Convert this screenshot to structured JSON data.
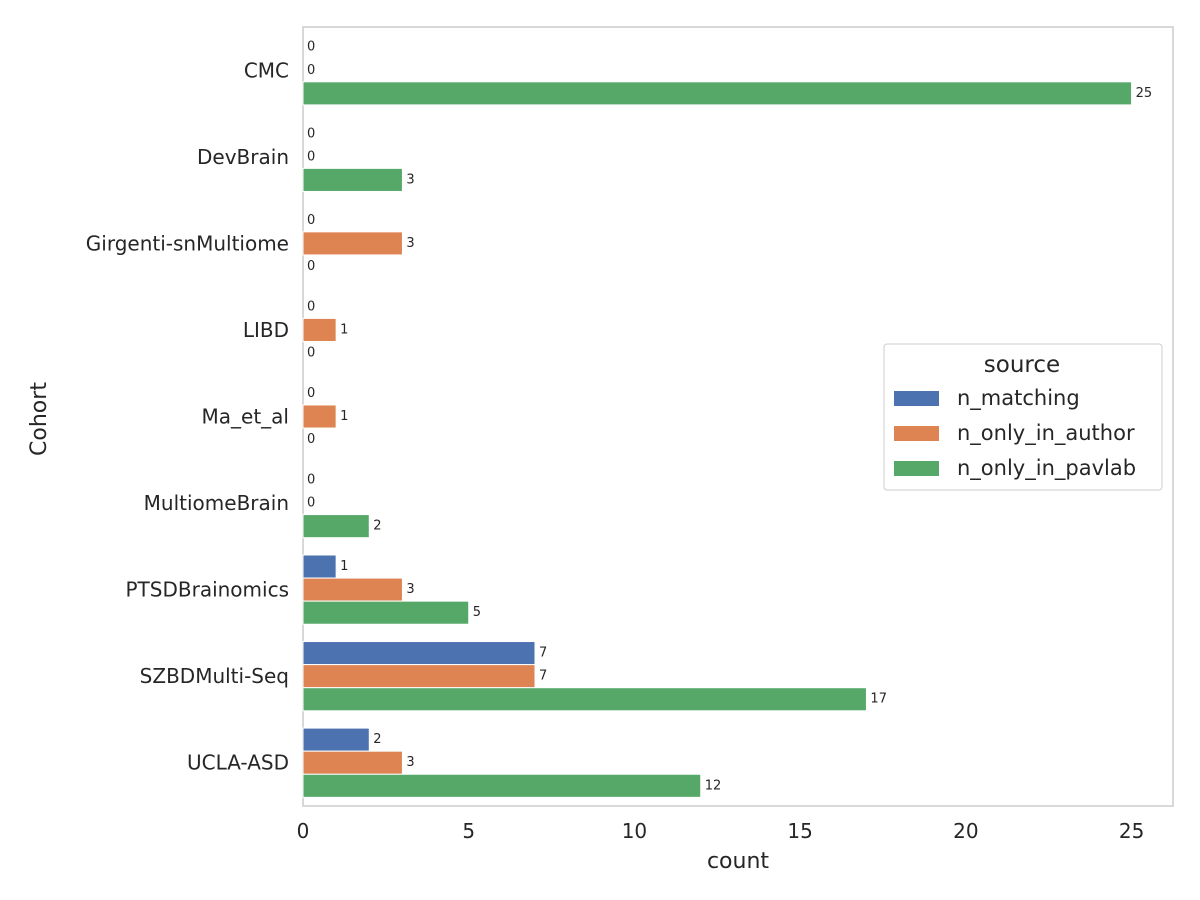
{
  "chart_data": {
    "type": "bar",
    "orientation": "horizontal",
    "categories": [
      "CMC",
      "DevBrain",
      "Girgenti-snMultiome",
      "LIBD",
      "Ma_et_al",
      "MultiomeBrain",
      "PTSDBrainomics",
      "SZBDMulti-Seq",
      "UCLA-ASD"
    ],
    "series": [
      {
        "name": "n_matching",
        "color": "#4c72b0",
        "values": [
          0,
          0,
          0,
          0,
          0,
          0,
          1,
          7,
          2
        ]
      },
      {
        "name": "n_only_in_author",
        "color": "#dd8452",
        "values": [
          0,
          0,
          3,
          1,
          1,
          0,
          3,
          7,
          3
        ]
      },
      {
        "name": "n_only_in_pavlab",
        "color": "#55a868",
        "values": [
          25,
          3,
          0,
          0,
          0,
          2,
          5,
          17,
          12
        ]
      }
    ],
    "xlabel": "count",
    "ylabel": "Cohort",
    "xlim": [
      0,
      26.25
    ],
    "xticks": [
      0,
      5,
      10,
      15,
      20,
      25
    ],
    "grid": false,
    "legend": {
      "title": "source",
      "placement": "center-right"
    }
  }
}
